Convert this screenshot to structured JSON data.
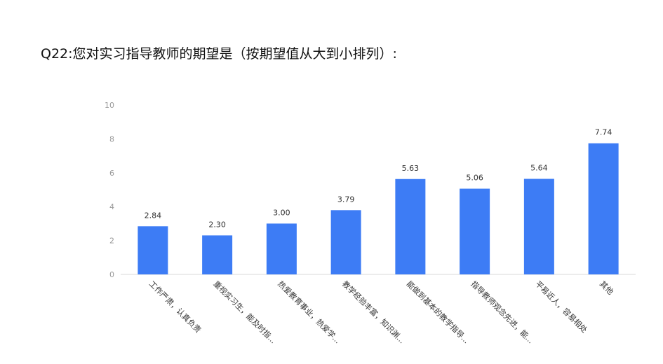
{
  "title": "Q22:您对实习指导教师的期望是（按期望值从大到小排列）:",
  "chart_data": {
    "type": "bar",
    "categories": [
      "工作严肃，认真负责",
      "重视实习生，能及时指...",
      "热爱教育事业，热爱学...",
      "教学经验丰富，知识渊...",
      "能做到基本的教学指导...",
      "指导教师观念先进，能...",
      "平易近人，容易相处",
      "其他"
    ],
    "values": [
      2.84,
      2.3,
      3.0,
      3.79,
      5.63,
      5.06,
      5.64,
      7.74
    ],
    "value_labels": [
      "2.84",
      "2.30",
      "3.00",
      "3.79",
      "5.63",
      "5.06",
      "5.64",
      "7.74"
    ],
    "yticks": [
      0,
      2,
      4,
      6,
      8,
      10
    ],
    "ylim": [
      0,
      10
    ],
    "grid": false,
    "bar_color": "#3d7cf5"
  }
}
